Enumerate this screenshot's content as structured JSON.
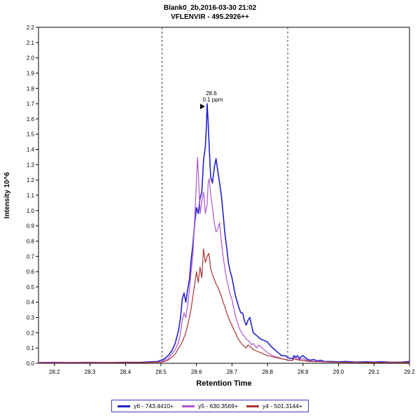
{
  "chart_data": {
    "type": "line",
    "title": "Blank0_2b,2016-03-30 21:02",
    "subtitle": "VFLENVIR - 495.2926++",
    "xlabel": "Retention Time",
    "ylabel": "Intensity 10^6",
    "xlim": [
      28.155,
      29.2
    ],
    "ylim": [
      0,
      2.2
    ],
    "xticks": [
      28.2,
      28.3,
      28.4,
      28.5,
      28.6,
      28.7,
      28.8,
      28.9,
      29.0,
      29.1,
      29.2
    ],
    "yticks": [
      0.0,
      0.1,
      0.2,
      0.3,
      0.4,
      0.5,
      0.6,
      0.7,
      0.8,
      0.9,
      1.0,
      1.1,
      1.2,
      1.3,
      1.4,
      1.5,
      1.6,
      1.7,
      1.8,
      1.9,
      2.0,
      2.1,
      2.2
    ],
    "boundaries": [
      28.503,
      28.857
    ],
    "annotation": {
      "x": 28.63,
      "y": 1.7,
      "rt_label": "28.6",
      "ppm_label": "0.1 ppm"
    },
    "series": [
      {
        "name": "y6 - 743.4410+",
        "color": "#2222cc",
        "points": [
          [
            28.155,
            0.005
          ],
          [
            28.2,
            0.006
          ],
          [
            28.25,
            0.005
          ],
          [
            28.3,
            0.006
          ],
          [
            28.35,
            0.005
          ],
          [
            28.4,
            0.007
          ],
          [
            28.44,
            0.006
          ],
          [
            28.47,
            0.01
          ],
          [
            28.49,
            0.012
          ],
          [
            28.5,
            0.02
          ],
          [
            28.51,
            0.03
          ],
          [
            28.52,
            0.05
          ],
          [
            28.53,
            0.08
          ],
          [
            28.54,
            0.13
          ],
          [
            28.55,
            0.22
          ],
          [
            28.555,
            0.3
          ],
          [
            28.56,
            0.42
          ],
          [
            28.565,
            0.46
          ],
          [
            28.57,
            0.4
          ],
          [
            28.575,
            0.48
          ],
          [
            28.58,
            0.55
          ],
          [
            28.585,
            0.68
          ],
          [
            28.59,
            0.78
          ],
          [
            28.595,
            0.92
          ],
          [
            28.6,
            1.02
          ],
          [
            28.605,
            0.98
          ],
          [
            28.61,
            1.08
          ],
          [
            28.615,
            1.12
          ],
          [
            28.62,
            1.33
          ],
          [
            28.625,
            1.42
          ],
          [
            28.628,
            1.55
          ],
          [
            28.63,
            1.7
          ],
          [
            28.633,
            1.58
          ],
          [
            28.636,
            1.4
          ],
          [
            28.64,
            1.22
          ],
          [
            28.645,
            1.18
          ],
          [
            28.65,
            1.28
          ],
          [
            28.655,
            1.34
          ],
          [
            28.66,
            1.26
          ],
          [
            28.665,
            1.18
          ],
          [
            28.67,
            1.1
          ],
          [
            28.675,
            0.98
          ],
          [
            28.68,
            0.85
          ],
          [
            28.685,
            0.76
          ],
          [
            28.69,
            0.66
          ],
          [
            28.695,
            0.6
          ],
          [
            28.7,
            0.56
          ],
          [
            28.705,
            0.5
          ],
          [
            28.71,
            0.44
          ],
          [
            28.715,
            0.4
          ],
          [
            28.72,
            0.36
          ],
          [
            28.725,
            0.33
          ],
          [
            28.73,
            0.33
          ],
          [
            28.735,
            0.28
          ],
          [
            28.74,
            0.25
          ],
          [
            28.745,
            0.28
          ],
          [
            28.75,
            0.3
          ],
          [
            28.755,
            0.25
          ],
          [
            28.76,
            0.2
          ],
          [
            28.765,
            0.19
          ],
          [
            28.77,
            0.18
          ],
          [
            28.78,
            0.16
          ],
          [
            28.79,
            0.15
          ],
          [
            28.8,
            0.14
          ],
          [
            28.81,
            0.11
          ],
          [
            28.82,
            0.09
          ],
          [
            28.83,
            0.07
          ],
          [
            28.835,
            0.06
          ],
          [
            28.84,
            0.05
          ],
          [
            28.85,
            0.05
          ],
          [
            28.855,
            0.04
          ],
          [
            28.86,
            0.035
          ],
          [
            28.87,
            0.03
          ],
          [
            28.875,
            0.05
          ],
          [
            28.88,
            0.04
          ],
          [
            28.885,
            0.05
          ],
          [
            28.89,
            0.03
          ],
          [
            28.895,
            0.045
          ],
          [
            28.9,
            0.05
          ],
          [
            28.91,
            0.03
          ],
          [
            28.92,
            0.02
          ],
          [
            28.93,
            0.025
          ],
          [
            28.94,
            0.015
          ],
          [
            28.95,
            0.02
          ],
          [
            28.96,
            0.012
          ],
          [
            28.98,
            0.012
          ],
          [
            29.0,
            0.01
          ],
          [
            29.02,
            0.012
          ],
          [
            29.05,
            0.008
          ],
          [
            29.08,
            0.01
          ],
          [
            29.1,
            0.008
          ],
          [
            29.12,
            0.01
          ],
          [
            29.15,
            0.007
          ],
          [
            29.18,
            0.008
          ],
          [
            29.2,
            0.012
          ]
        ]
      },
      {
        "name": "y5 - 630.3569+",
        "color": "#b055cc",
        "points": [
          [
            28.155,
            0.004
          ],
          [
            28.25,
            0.004
          ],
          [
            28.35,
            0.005
          ],
          [
            28.45,
            0.006
          ],
          [
            28.5,
            0.01
          ],
          [
            28.51,
            0.02
          ],
          [
            28.52,
            0.03
          ],
          [
            28.53,
            0.06
          ],
          [
            28.54,
            0.09
          ],
          [
            28.55,
            0.14
          ],
          [
            28.555,
            0.2
          ],
          [
            28.56,
            0.28
          ],
          [
            28.565,
            0.33
          ],
          [
            28.57,
            0.3
          ],
          [
            28.575,
            0.38
          ],
          [
            28.58,
            0.48
          ],
          [
            28.585,
            0.6
          ],
          [
            28.59,
            0.72
          ],
          [
            28.595,
            0.95
          ],
          [
            28.6,
            1.2
          ],
          [
            28.603,
            1.35
          ],
          [
            28.606,
            1.22
          ],
          [
            28.61,
            0.98
          ],
          [
            28.615,
            1.06
          ],
          [
            28.62,
            1.12
          ],
          [
            28.625,
            0.98
          ],
          [
            28.63,
            1.04
          ],
          [
            28.633,
            1.18
          ],
          [
            28.636,
            1.21
          ],
          [
            28.64,
            1.1
          ],
          [
            28.645,
            1.02
          ],
          [
            28.65,
            0.92
          ],
          [
            28.655,
            0.86
          ],
          [
            28.66,
            0.88
          ],
          [
            28.665,
            0.92
          ],
          [
            28.67,
            0.8
          ],
          [
            28.675,
            0.7
          ],
          [
            28.68,
            0.62
          ],
          [
            28.685,
            0.55
          ],
          [
            28.69,
            0.5
          ],
          [
            28.695,
            0.45
          ],
          [
            28.7,
            0.42
          ],
          [
            28.705,
            0.36
          ],
          [
            28.71,
            0.31
          ],
          [
            28.715,
            0.27
          ],
          [
            28.72,
            0.23
          ],
          [
            28.73,
            0.19
          ],
          [
            28.74,
            0.16
          ],
          [
            28.75,
            0.14
          ],
          [
            28.755,
            0.12
          ],
          [
            28.76,
            0.13
          ],
          [
            28.77,
            0.1
          ],
          [
            28.775,
            0.12
          ],
          [
            28.78,
            0.11
          ],
          [
            28.79,
            0.09
          ],
          [
            28.8,
            0.07
          ],
          [
            28.81,
            0.055
          ],
          [
            28.82,
            0.045
          ],
          [
            28.83,
            0.04
          ],
          [
            28.84,
            0.03
          ],
          [
            28.85,
            0.025
          ],
          [
            28.86,
            0.02
          ],
          [
            28.87,
            0.02
          ],
          [
            28.875,
            0.04
          ],
          [
            28.88,
            0.035
          ],
          [
            28.89,
            0.025
          ],
          [
            28.9,
            0.03
          ],
          [
            28.91,
            0.02
          ],
          [
            28.92,
            0.015
          ],
          [
            28.94,
            0.012
          ],
          [
            28.96,
            0.01
          ],
          [
            28.98,
            0.008
          ],
          [
            29.0,
            0.008
          ],
          [
            29.05,
            0.006
          ],
          [
            29.1,
            0.006
          ],
          [
            29.15,
            0.005
          ],
          [
            29.2,
            0.006
          ]
        ]
      },
      {
        "name": "y4 - 501.3144+",
        "color": "#aa3333",
        "points": [
          [
            28.155,
            0.003
          ],
          [
            28.25,
            0.003
          ],
          [
            28.35,
            0.004
          ],
          [
            28.45,
            0.005
          ],
          [
            28.5,
            0.008
          ],
          [
            28.51,
            0.012
          ],
          [
            28.52,
            0.02
          ],
          [
            28.53,
            0.04
          ],
          [
            28.54,
            0.06
          ],
          [
            28.55,
            0.1
          ],
          [
            28.56,
            0.14
          ],
          [
            28.565,
            0.17
          ],
          [
            28.57,
            0.2
          ],
          [
            28.575,
            0.25
          ],
          [
            28.58,
            0.3
          ],
          [
            28.585,
            0.36
          ],
          [
            28.59,
            0.44
          ],
          [
            28.595,
            0.52
          ],
          [
            28.6,
            0.6
          ],
          [
            28.605,
            0.53
          ],
          [
            28.61,
            0.63
          ],
          [
            28.615,
            0.56
          ],
          [
            28.62,
            0.75
          ],
          [
            28.625,
            0.66
          ],
          [
            28.63,
            0.7
          ],
          [
            28.635,
            0.72
          ],
          [
            28.64,
            0.62
          ],
          [
            28.645,
            0.58
          ],
          [
            28.65,
            0.55
          ],
          [
            28.655,
            0.52
          ],
          [
            28.66,
            0.5
          ],
          [
            28.665,
            0.47
          ],
          [
            28.67,
            0.44
          ],
          [
            28.675,
            0.4
          ],
          [
            28.68,
            0.37
          ],
          [
            28.685,
            0.33
          ],
          [
            28.69,
            0.3
          ],
          [
            28.695,
            0.27
          ],
          [
            28.7,
            0.25
          ],
          [
            28.705,
            0.22
          ],
          [
            28.71,
            0.2
          ],
          [
            28.715,
            0.17
          ],
          [
            28.72,
            0.15
          ],
          [
            28.73,
            0.12
          ],
          [
            28.74,
            0.1
          ],
          [
            28.745,
            0.12
          ],
          [
            28.75,
            0.11
          ],
          [
            28.76,
            0.09
          ],
          [
            28.77,
            0.08
          ],
          [
            28.78,
            0.07
          ],
          [
            28.79,
            0.06
          ],
          [
            28.8,
            0.05
          ],
          [
            28.81,
            0.045
          ],
          [
            28.82,
            0.04
          ],
          [
            28.83,
            0.035
          ],
          [
            28.84,
            0.03
          ],
          [
            28.85,
            0.025
          ],
          [
            28.86,
            0.02
          ],
          [
            28.87,
            0.018
          ],
          [
            28.875,
            0.03
          ],
          [
            28.88,
            0.025
          ],
          [
            28.89,
            0.02
          ],
          [
            28.9,
            0.018
          ],
          [
            28.92,
            0.012
          ],
          [
            28.95,
            0.01
          ],
          [
            29.0,
            0.007
          ],
          [
            29.05,
            0.006
          ],
          [
            29.1,
            0.005
          ],
          [
            29.15,
            0.004
          ],
          [
            29.2,
            0.005
          ]
        ]
      }
    ]
  }
}
